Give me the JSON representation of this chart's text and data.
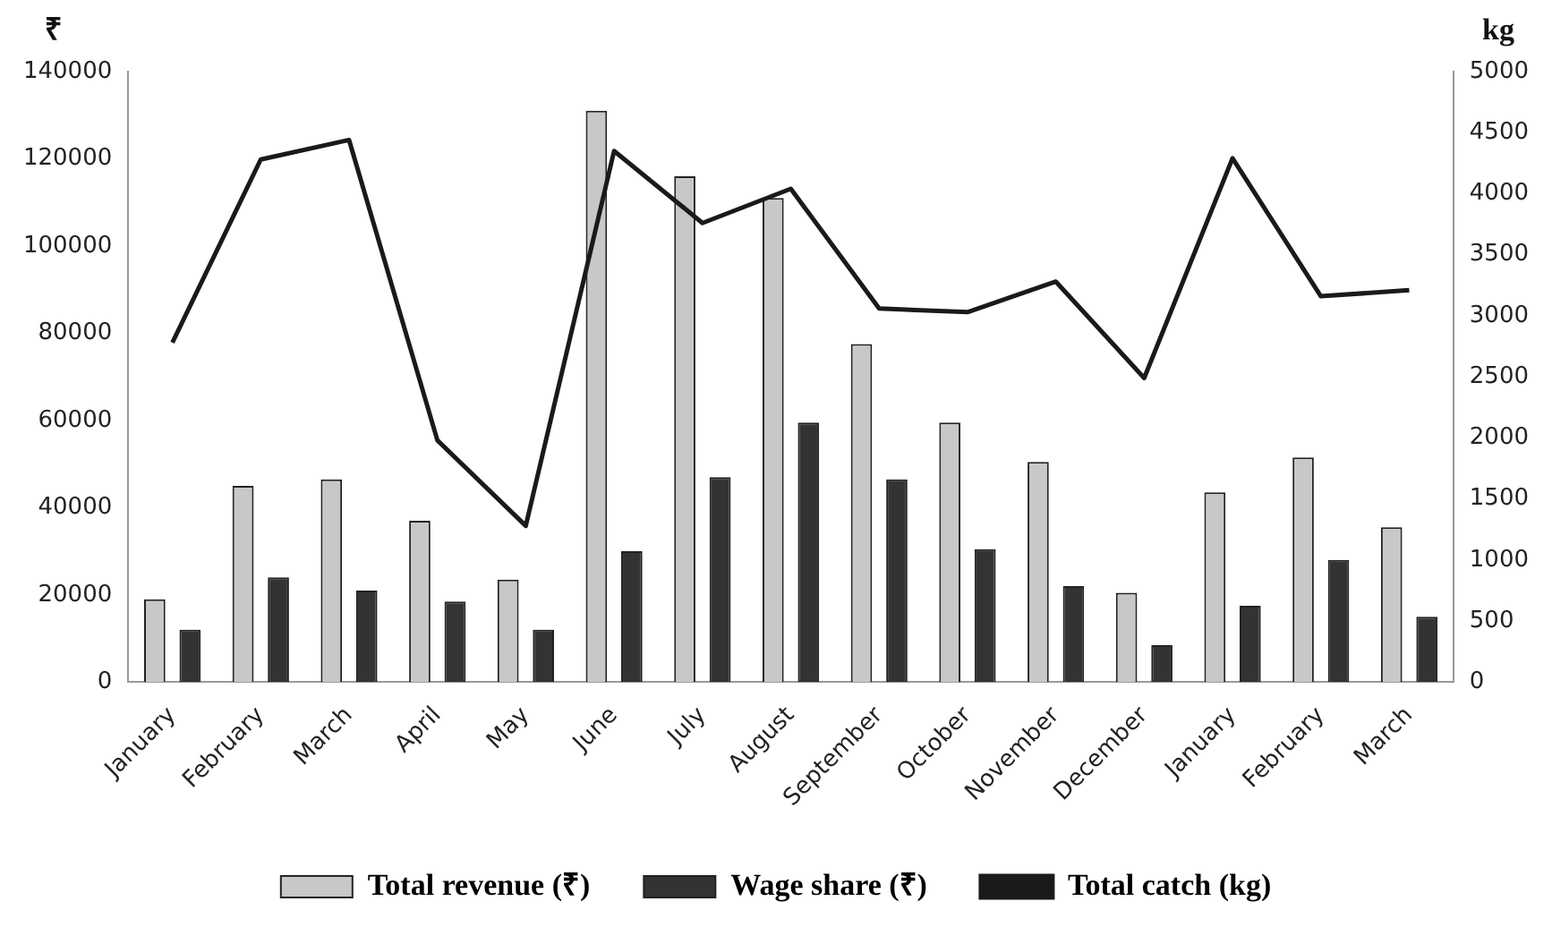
{
  "chart_data": {
    "type": "bar",
    "ylabel": "₹",
    "y2label": "kg",
    "categories": [
      "January",
      "February",
      "March",
      "April",
      "May",
      "June",
      "July",
      "August",
      "September",
      "October",
      "November",
      "December",
      "January",
      "February",
      "March"
    ],
    "series": [
      {
        "name": "Total revenue (₹)",
        "color": "#c8c8c8",
        "values": [
          19000,
          45000,
          46500,
          37000,
          23500,
          131000,
          116000,
          111000,
          77500,
          59500,
          50500,
          20500,
          43500,
          51500,
          35500
        ]
      },
      {
        "name": "Wage share (₹)",
        "color": "#333333",
        "values": [
          12000,
          24000,
          21000,
          18500,
          12000,
          30000,
          47000,
          59500,
          46500,
          30500,
          22000,
          8500,
          17500,
          28000,
          15000
        ]
      },
      {
        "name": "Total catch (kg)",
        "type": "line",
        "axis": "y2",
        "color": "#1a1a1a",
        "values": [
          2780,
          4280,
          4440,
          1980,
          1280,
          4350,
          3760,
          4040,
          3060,
          3030,
          3280,
          2490,
          4290,
          3160,
          3210
        ]
      }
    ],
    "ylim": [
      0,
      140000
    ],
    "yticks": [
      0,
      20000,
      40000,
      60000,
      80000,
      100000,
      120000,
      140000
    ],
    "y2lim": [
      0,
      5000
    ],
    "y2ticks": [
      0,
      500,
      1000,
      1500,
      2000,
      2500,
      3000,
      3500,
      4000,
      4500,
      5000
    ],
    "grid": false,
    "legend": "bottom",
    "marker": "none",
    "line_style": "solid"
  }
}
